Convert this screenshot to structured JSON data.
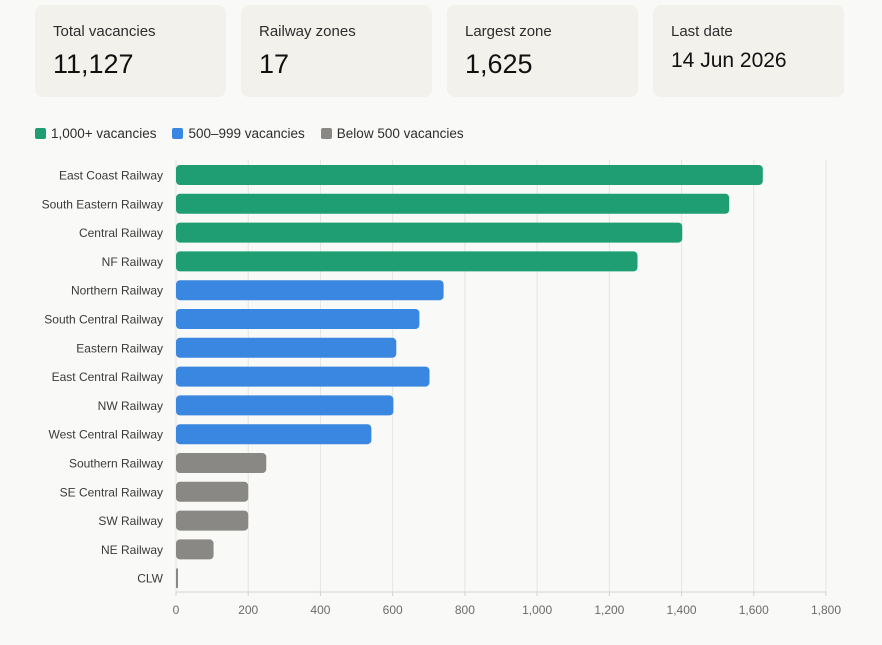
{
  "stats": [
    {
      "label": "Total vacancies",
      "value": "11,127"
    },
    {
      "label": "Railway zones",
      "value": "17"
    },
    {
      "label": "Largest zone",
      "value": "1,625"
    },
    {
      "label": "Last date",
      "value": "14 Jun 2026"
    }
  ],
  "legend": [
    {
      "label": "1,000+ vacancies",
      "color": "#1f9e74"
    },
    {
      "label": "500–999 vacancies",
      "color": "#3987e0"
    },
    {
      "label": "Below 500 vacancies",
      "color": "#898884"
    }
  ],
  "chart_data": {
    "type": "bar",
    "orientation": "horizontal",
    "categories": [
      "East Coast Railway",
      "South Eastern Railway",
      "Central Railway",
      "NF Railway",
      "Northern Railway",
      "South Central Railway",
      "Eastern Railway",
      "East Central Railway",
      "NW Railway",
      "West Central Railway",
      "Southern Railway",
      "SE Central Railway",
      "SW Railway",
      "NE Railway",
      "CLW"
    ],
    "values": [
      1625,
      1532,
      1402,
      1278,
      741,
      674,
      610,
      702,
      602,
      541,
      250,
      200,
      200,
      104,
      5
    ],
    "groups": [
      0,
      0,
      0,
      0,
      1,
      1,
      1,
      1,
      1,
      1,
      2,
      2,
      2,
      2,
      2
    ],
    "xlim": [
      0,
      1800
    ],
    "xticks": [
      0,
      200,
      400,
      600,
      800,
      1000,
      1200,
      1400,
      1600,
      1800
    ],
    "xtick_labels": [
      "0",
      "200",
      "400",
      "600",
      "800",
      "1,000",
      "1,200",
      "1,400",
      "1,600",
      "1,800"
    ],
    "grid": "vertical",
    "legend_position": "top-left"
  }
}
